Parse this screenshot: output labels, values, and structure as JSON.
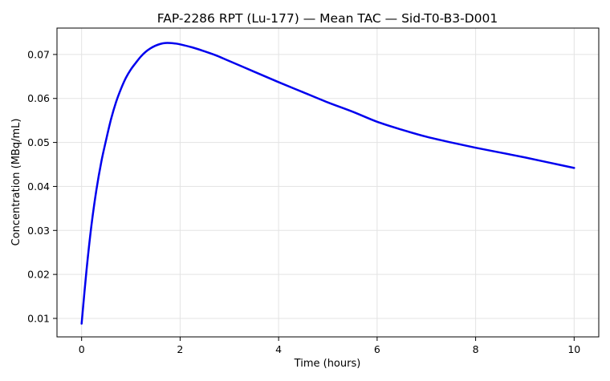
{
  "chart_data": {
    "type": "line",
    "title": "FAP-2286 RPT (Lu-177) — Mean TAC — Sid-T0-B3-D001",
    "xlabel": "Time (hours)",
    "ylabel": "Concentration (MBq/mL)",
    "xlim": [
      -0.5,
      10.5
    ],
    "ylim": [
      0.0058,
      0.076
    ],
    "xticks": [
      0,
      2,
      4,
      6,
      8,
      10
    ],
    "yticks": [
      0.01,
      0.02,
      0.03,
      0.04,
      0.05,
      0.06,
      0.07
    ],
    "xtick_labels": [
      "0",
      "2",
      "4",
      "6",
      "8",
      "10"
    ],
    "ytick_labels": [
      "0.01",
      "0.02",
      "0.03",
      "0.04",
      "0.05",
      "0.06",
      "0.07"
    ],
    "grid": true,
    "series": [
      {
        "color": "#0000ee",
        "x": [
          0,
          0.1,
          0.2,
          0.3,
          0.4,
          0.5,
          0.6,
          0.7,
          0.8,
          0.9,
          1.0,
          1.1,
          1.2,
          1.3,
          1.4,
          1.5,
          1.6,
          1.7,
          1.8,
          1.9,
          2.0,
          2.25,
          2.5,
          2.75,
          3.0,
          3.5,
          4.0,
          4.5,
          5.0,
          5.5,
          6.0,
          6.5,
          7.0,
          7.5,
          8.0,
          8.5,
          9.0,
          9.5,
          10.0
        ],
        "y": [
          0.0088,
          0.021,
          0.0312,
          0.0392,
          0.0456,
          0.0507,
          0.0554,
          0.0592,
          0.0622,
          0.0647,
          0.0666,
          0.0681,
          0.0695,
          0.0706,
          0.0714,
          0.072,
          0.0724,
          0.0726,
          0.0726,
          0.0725,
          0.0723,
          0.0716,
          0.0707,
          0.0697,
          0.0685,
          0.0661,
          0.0637,
          0.0614,
          0.0591,
          0.057,
          0.0547,
          0.0529,
          0.0513,
          0.05,
          0.0488,
          0.0477,
          0.0466,
          0.0454,
          0.0442
        ]
      }
    ]
  }
}
